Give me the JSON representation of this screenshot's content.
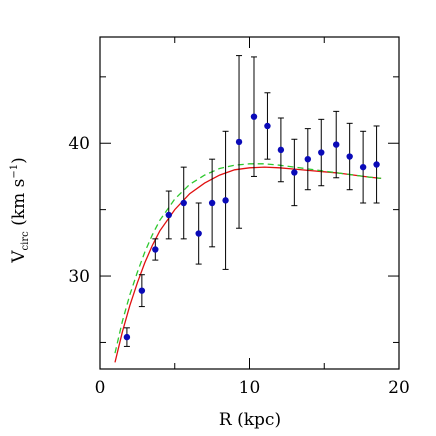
{
  "chart_data": {
    "type": "scatter",
    "xlabel": "R (kpc)",
    "ylabel_main": "V",
    "ylabel_sub": "circ",
    "ylabel_units": " (km s",
    "ylabel_exp": "−1",
    "ylabel_close": ")",
    "xlim": [
      0,
      20
    ],
    "ylim": [
      23,
      48
    ],
    "x_ticks": [
      0,
      10,
      20
    ],
    "x_tick_labels": [
      "0",
      "10",
      "20"
    ],
    "y_ticks": [
      30,
      40
    ],
    "y_tick_labels": [
      "30",
      "40"
    ],
    "x_minor_ticks": [
      5,
      15
    ],
    "y_minor_ticks": [
      25,
      35,
      45
    ],
    "grid": false,
    "points": [
      {
        "x": 1.8,
        "y": 25.4,
        "err": 0.7
      },
      {
        "x": 2.8,
        "y": 28.9,
        "err": 1.2
      },
      {
        "x": 3.7,
        "y": 32.0,
        "err": 0.8
      },
      {
        "x": 4.6,
        "y": 34.6,
        "err": 1.8
      },
      {
        "x": 5.6,
        "y": 35.5,
        "err": 2.7
      },
      {
        "x": 6.6,
        "y": 33.2,
        "err": 2.3
      },
      {
        "x": 7.5,
        "y": 35.5,
        "err": 3.3
      },
      {
        "x": 8.4,
        "y": 35.7,
        "err": 5.2
      },
      {
        "x": 9.3,
        "y": 40.1,
        "err": 6.5
      },
      {
        "x": 10.3,
        "y": 42.0,
        "err": 4.5
      },
      {
        "x": 11.2,
        "y": 41.3,
        "err": 2.5
      },
      {
        "x": 12.1,
        "y": 39.5,
        "err": 2.4
      },
      {
        "x": 13.0,
        "y": 37.8,
        "err": 2.5
      },
      {
        "x": 13.9,
        "y": 38.8,
        "err": 2.3
      },
      {
        "x": 14.8,
        "y": 39.3,
        "err": 2.5
      },
      {
        "x": 15.8,
        "y": 39.9,
        "err": 2.5
      },
      {
        "x": 16.7,
        "y": 39.0,
        "err": 2.5
      },
      {
        "x": 17.6,
        "y": 38.2,
        "err": 2.7
      },
      {
        "x": 18.5,
        "y": 38.4,
        "err": 2.9
      }
    ],
    "series": [
      {
        "color": "#e01010",
        "dash": "solid",
        "x": [
          1.0,
          1.5,
          2.0,
          2.5,
          3.0,
          3.5,
          4.0,
          5.0,
          6.0,
          7.0,
          8.0,
          9.0,
          10.0,
          11.0,
          12.0,
          13.0,
          14.0,
          15.0,
          16.0,
          17.0,
          18.0,
          18.8
        ],
        "y": [
          23.5,
          25.8,
          27.8,
          29.5,
          31.0,
          32.3,
          33.4,
          35.0,
          36.2,
          37.0,
          37.6,
          38.0,
          38.15,
          38.2,
          38.15,
          38.05,
          37.95,
          37.85,
          37.75,
          37.6,
          37.45,
          37.35
        ]
      },
      {
        "color": "#2ec82e",
        "dash": "dashed",
        "x": [
          1.0,
          1.5,
          2.0,
          2.5,
          3.0,
          3.5,
          4.0,
          5.0,
          6.0,
          7.0,
          8.0,
          9.0,
          10.0,
          11.0,
          12.0,
          13.0,
          14.0,
          15.0,
          16.0,
          17.0,
          18.0,
          18.8
        ],
        "y": [
          24.2,
          26.6,
          28.6,
          30.3,
          31.8,
          33.1,
          34.2,
          35.8,
          36.9,
          37.6,
          38.1,
          38.35,
          38.45,
          38.45,
          38.35,
          38.2,
          38.05,
          37.9,
          37.75,
          37.6,
          37.45,
          37.35
        ]
      }
    ],
    "marker_color": "#0a0ab8"
  }
}
